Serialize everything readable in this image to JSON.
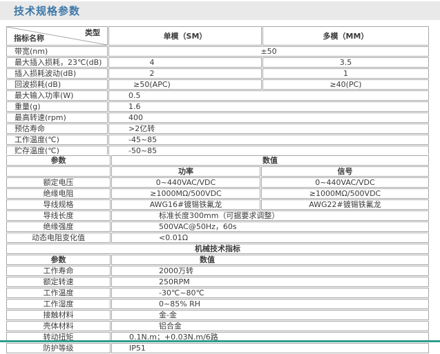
{
  "title": "技术规格参数",
  "colors": {
    "title_text": "#3e78a8",
    "banner_bg": "#e9e9e9",
    "table_border": "#a6a6a6",
    "bottom_rule": "#2e9e8f"
  },
  "table1": {
    "corner_top": "类型",
    "corner_bottom": "指标名称",
    "col_sm": "单模（SM）",
    "col_mm": "多模（MM）",
    "rows": [
      {
        "label": "带宽(nm)",
        "value": "±50",
        "layout": "merged-center"
      },
      {
        "label": "最大插入损耗，23℃(dB)",
        "sm": "4",
        "mm": "3.5",
        "layout": "two"
      },
      {
        "label": "插入损耗波动(dB)",
        "sm": "2",
        "mm": "1",
        "layout": "two"
      },
      {
        "label": "回波损耗(dB)",
        "sm": "≥50(APC)",
        "mm": "≥40(PC)",
        "layout": "two"
      },
      {
        "label": "最大输入功率(W)",
        "value": "0.5",
        "layout": "merged-left"
      },
      {
        "label": "重量(g)",
        "value": "1.6",
        "layout": "merged-left"
      },
      {
        "label": "最高转速(rpm)",
        "value": "400",
        "layout": "merged-left"
      },
      {
        "label": "预估寿命",
        "value": ">2亿转",
        "layout": "merged-left"
      },
      {
        "label": "工作温度(℃)",
        "value": "-45~85",
        "layout": "merged-left"
      },
      {
        "label": "贮存温度(℃)",
        "value": "-50~85",
        "layout": "merged-left"
      }
    ]
  },
  "table2": {
    "header_param": "参数",
    "header_value": "数值",
    "sub_power": "功率",
    "sub_signal": "信号",
    "electrical_rows": [
      {
        "label": "额定电压",
        "power": "0~440VAC/VDC",
        "signal": "0~440VAC/VDC",
        "layout": "two"
      },
      {
        "label": "绝缘电阻",
        "power": "≥1000MΩ/500VDC",
        "signal": "≥1000MΩ/500VDC",
        "layout": "two"
      },
      {
        "label": "导线规格",
        "power": "AWG16#镀锡铁氟龙",
        "signal": "AWG22#镀锡铁氟龙",
        "layout": "two"
      },
      {
        "label": "导线长度",
        "value": "标准长度300mm（可据要求调整）",
        "layout": "merged"
      },
      {
        "label": "绝缘强度",
        "value": "500VAC@50Hz，60s",
        "layout": "merged"
      },
      {
        "label": "动态电阻变化值",
        "value": "<0.01Ω",
        "layout": "merged"
      }
    ],
    "section_header": "机械技术指标",
    "mech_header_param": "参数",
    "mech_header_value": "数值",
    "mechanical_rows": [
      {
        "label": "工作寿命",
        "value": "2000万转",
        "indent": "normal"
      },
      {
        "label": "额定转速",
        "value": "250RPM",
        "indent": "normal"
      },
      {
        "label": "工作温度",
        "value": "-30℃~80℃",
        "indent": "normal"
      },
      {
        "label": "工作湿度",
        "value": "0~85% RH",
        "indent": "normal"
      },
      {
        "label": "接触材料",
        "value": "金-金",
        "indent": "normal"
      },
      {
        "label": "壳体材料",
        "value": "铝合金",
        "indent": "normal"
      },
      {
        "label": "转动扭矩",
        "value": "0.1N.m；+0.03N.m/6路",
        "indent": "small"
      },
      {
        "label": "防护等级",
        "value": "IP51",
        "indent": "small"
      }
    ]
  }
}
